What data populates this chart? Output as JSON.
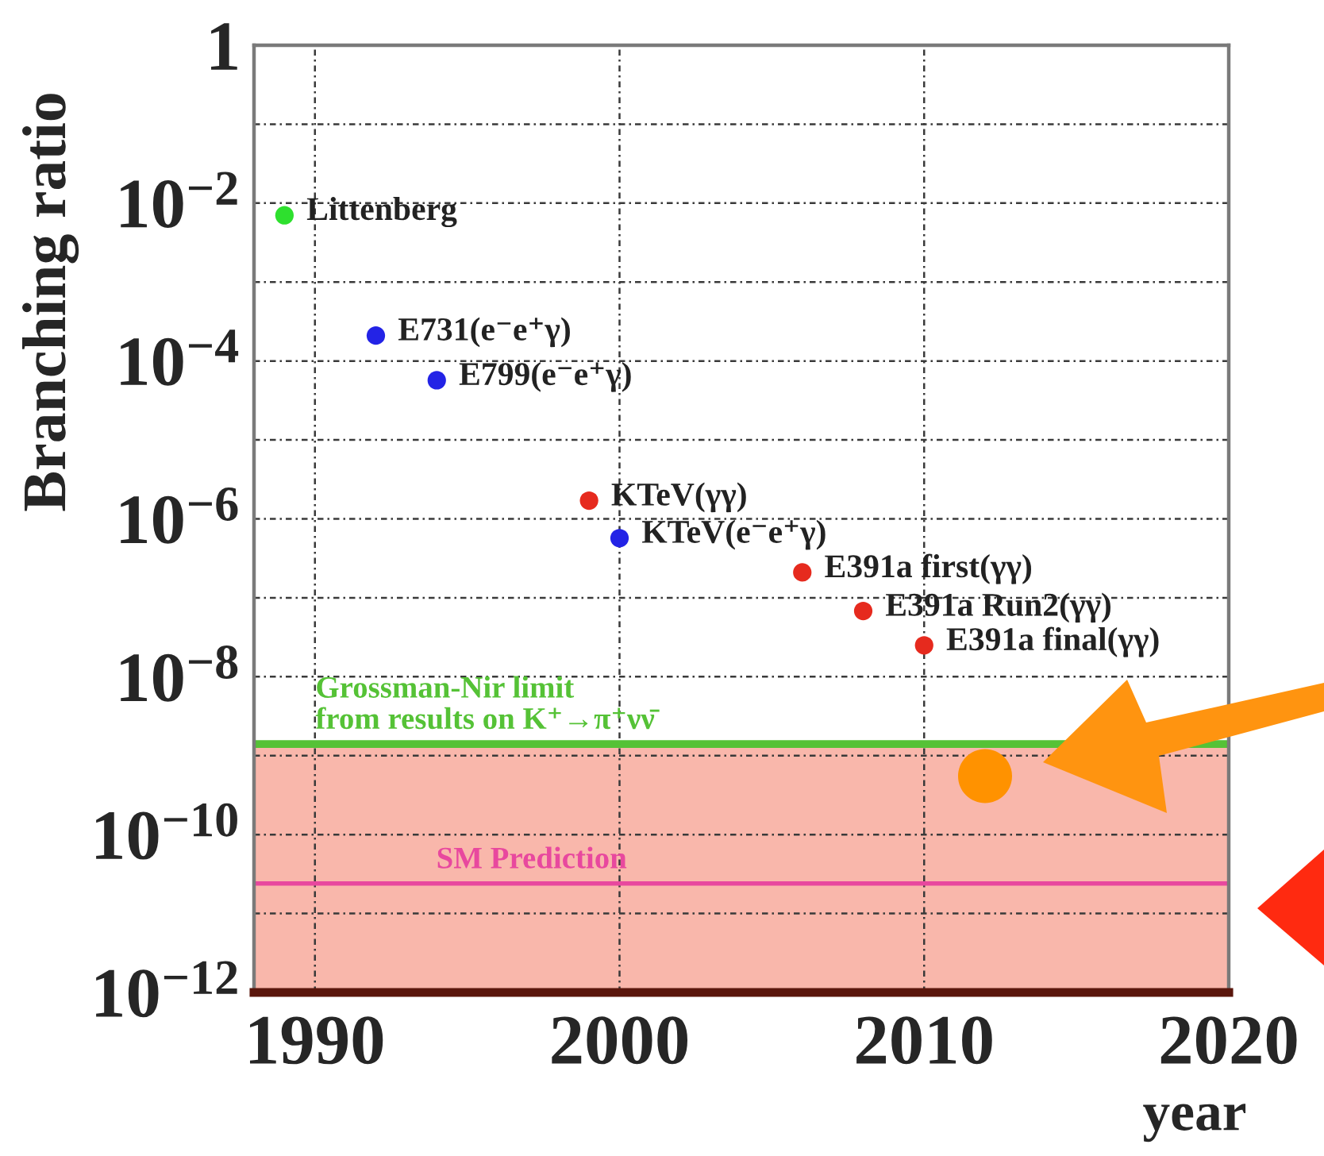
{
  "chart_data": {
    "type": "scatter",
    "xlabel": "year",
    "ylabel": "Branching ratio",
    "xlim": [
      1988,
      2020
    ],
    "xticks": [
      1990,
      2000,
      2010,
      2020
    ],
    "ylim": [
      1e-12,
      1
    ],
    "yticks": [
      1,
      {
        "value": 0.1,
        "label": null
      },
      {
        "value": 0.01,
        "label": "10$^{−2}$"
      },
      {
        "value": 0.001,
        "label": null
      },
      {
        "value": 0.0001,
        "label": "10$^{−4}$"
      },
      {
        "value": 1e-05,
        "label": null
      },
      {
        "value": 1e-06,
        "label": "10$^{−6}$"
      },
      {
        "value": 1e-07,
        "label": null
      },
      {
        "value": 1e-08,
        "label": "10$^{−8}$"
      },
      {
        "value": 1e-09,
        "label": null
      },
      {
        "value": 1e-10,
        "label": "10$^{−10}$"
      },
      {
        "value": 1e-11,
        "label": null
      },
      {
        "value": 1e-12,
        "label": "10$^{−12}$"
      }
    ],
    "log": "y",
    "grid": true,
    "marker": "circle",
    "series": [
      {
        "x": [
          1989,
          1992,
          1994,
          1999,
          2000,
          2006,
          2008,
          2010
        ],
        "values": [
          0.007,
          0.00021,
          5.7e-05,
          1.7e-06,
          5.7e-07,
          2.1e-07,
          6.8e-08,
          2.5e-08
        ],
        "colors": [
          "#2ee02e",
          "#2323e6",
          "#2323e6",
          "#e62a1e",
          "#2323e6",
          "#e62a1e",
          "#e62a1e",
          "#e62a1e"
        ]
      },
      {
        "type": "bubble",
        "x": [
          2012
        ],
        "values": [
          5.5e-10
        ],
        "sizes": [
          1
        ],
        "color": "#ff9200"
      }
    ],
    "bands": [
      {
        "axis": "y",
        "from": 1e-12,
        "to": 1.4e-09,
        "color": "#f9b7ab"
      }
    ],
    "ref_lines": [
      {
        "axis": "y",
        "value": 1.4e-09,
        "label": "Grossman-Nir limit\nfrom results on K⁺→π⁺νν̄",
        "color": "#55c236"
      },
      {
        "axis": "y",
        "value": 2.4e-11,
        "label": "SM Prediction",
        "color": "#e8489e"
      }
    ],
    "annotations": [
      {
        "text": "Littenberg",
        "x": 1989,
        "y": 0.007
      },
      {
        "text": "E731(e⁻e⁺γ)",
        "x": 1992,
        "y": 0.00021
      },
      {
        "text": "E799(e⁻e⁺γ)",
        "x": 1994,
        "y": 5.7e-05
      },
      {
        "text": "KTeV(γγ)",
        "x": 1999,
        "y": 1.7e-06
      },
      {
        "text": "KTeV(e⁻e⁺γ)",
        "x": 2000,
        "y": 5.7e-07
      },
      {
        "text": "E391a first(γγ)",
        "x": 2006,
        "y": 2.1e-07
      },
      {
        "text": "E391a Run2(γγ)",
        "x": 2008,
        "y": 6.8e-08
      },
      {
        "text": "E391a final(γγ)",
        "x": 2010,
        "y": 2.5e-08
      }
    ]
  }
}
